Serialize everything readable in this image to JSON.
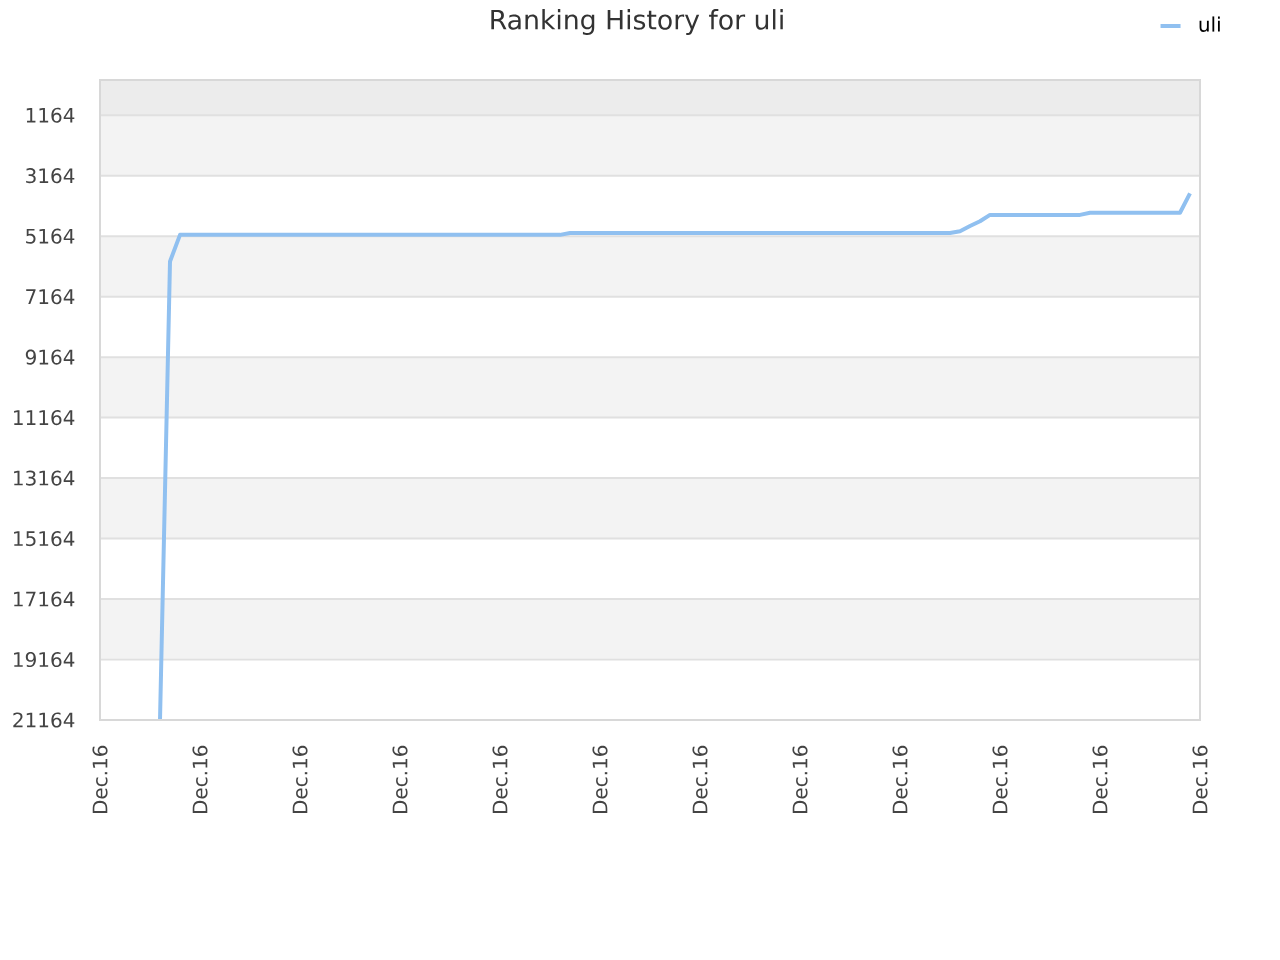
{
  "chart_data": {
    "type": "line",
    "title": "Ranking History for uli",
    "categories": [
      "Dec.16",
      null,
      null,
      null,
      null,
      null,
      null,
      null,
      null,
      null,
      "Dec.16",
      null,
      null,
      null,
      null,
      null,
      null,
      null,
      null,
      null,
      "Dec.16",
      null,
      null,
      null,
      null,
      null,
      null,
      null,
      null,
      null,
      "Dec.16",
      null,
      null,
      null,
      null,
      null,
      null,
      null,
      null,
      null,
      "Dec.16",
      null,
      null,
      null,
      null,
      null,
      null,
      null,
      null,
      null,
      "Dec.16",
      null,
      null,
      null,
      null,
      null,
      null,
      null,
      null,
      null,
      "Dec.16",
      null,
      null,
      null,
      null,
      null,
      null,
      null,
      null,
      null,
      "Dec.16",
      null,
      null,
      null,
      null,
      null,
      null,
      null,
      null,
      null,
      "Dec.16",
      null,
      null,
      null,
      null,
      null,
      null,
      null,
      null,
      null,
      "Dec.16",
      null,
      null,
      null,
      null,
      null,
      null,
      null,
      null,
      null,
      "Dec.16",
      null,
      null,
      null,
      null,
      null,
      null,
      null,
      null,
      null,
      "Dec.16"
    ],
    "series": [
      {
        "name": "uli",
        "color": "#90c0f0",
        "values": [
          null,
          null,
          null,
          null,
          null,
          null,
          21164,
          6000,
          5120,
          5120,
          5120,
          5120,
          5120,
          5120,
          5120,
          5120,
          5120,
          5120,
          5120,
          5120,
          5120,
          5120,
          5120,
          5120,
          5120,
          5120,
          5120,
          5120,
          5120,
          5120,
          5120,
          5120,
          5120,
          5120,
          5120,
          5120,
          5120,
          5120,
          5120,
          5120,
          5120,
          5120,
          5120,
          5120,
          5120,
          5120,
          5120,
          5060,
          5060,
          5060,
          5060,
          5060,
          5060,
          5060,
          5060,
          5060,
          5060,
          5060,
          5060,
          5060,
          5060,
          5060,
          5060,
          5060,
          5060,
          5060,
          5060,
          5060,
          5060,
          5060,
          5060,
          5060,
          5060,
          5060,
          5060,
          5060,
          5060,
          5060,
          5060,
          5060,
          5060,
          5060,
          5060,
          5060,
          5060,
          5060,
          5000,
          4830,
          4670,
          4460,
          4460,
          4460,
          4460,
          4460,
          4460,
          4460,
          4460,
          4460,
          4460,
          4390,
          4390,
          4390,
          4390,
          4390,
          4390,
          4390,
          4390,
          4390,
          4390,
          3750,
          null
        ]
      }
    ],
    "ylim": [
      21164,
      0
    ],
    "yticks": [
      1164,
      3164,
      5164,
      7164,
      9164,
      11164,
      13164,
      15164,
      17164,
      19164,
      21164
    ],
    "grid": "y",
    "legend": "top right",
    "bands": [
      {
        "axis": "y",
        "from": 0,
        "to": 1164,
        "color": "#ececec"
      },
      {
        "axis": "y",
        "from": 1164,
        "to": 3164,
        "color": "#f3f3f3"
      },
      {
        "axis": "y",
        "from": 5164,
        "to": 7164,
        "color": "#f3f3f3"
      },
      {
        "axis": "y",
        "from": 9164,
        "to": 11164,
        "color": "#f3f3f3"
      },
      {
        "axis": "y",
        "from": 13164,
        "to": 15164,
        "color": "#f3f3f3"
      },
      {
        "axis": "y",
        "from": 17164,
        "to": 19164,
        "color": "#f3f3f3"
      }
    ]
  }
}
